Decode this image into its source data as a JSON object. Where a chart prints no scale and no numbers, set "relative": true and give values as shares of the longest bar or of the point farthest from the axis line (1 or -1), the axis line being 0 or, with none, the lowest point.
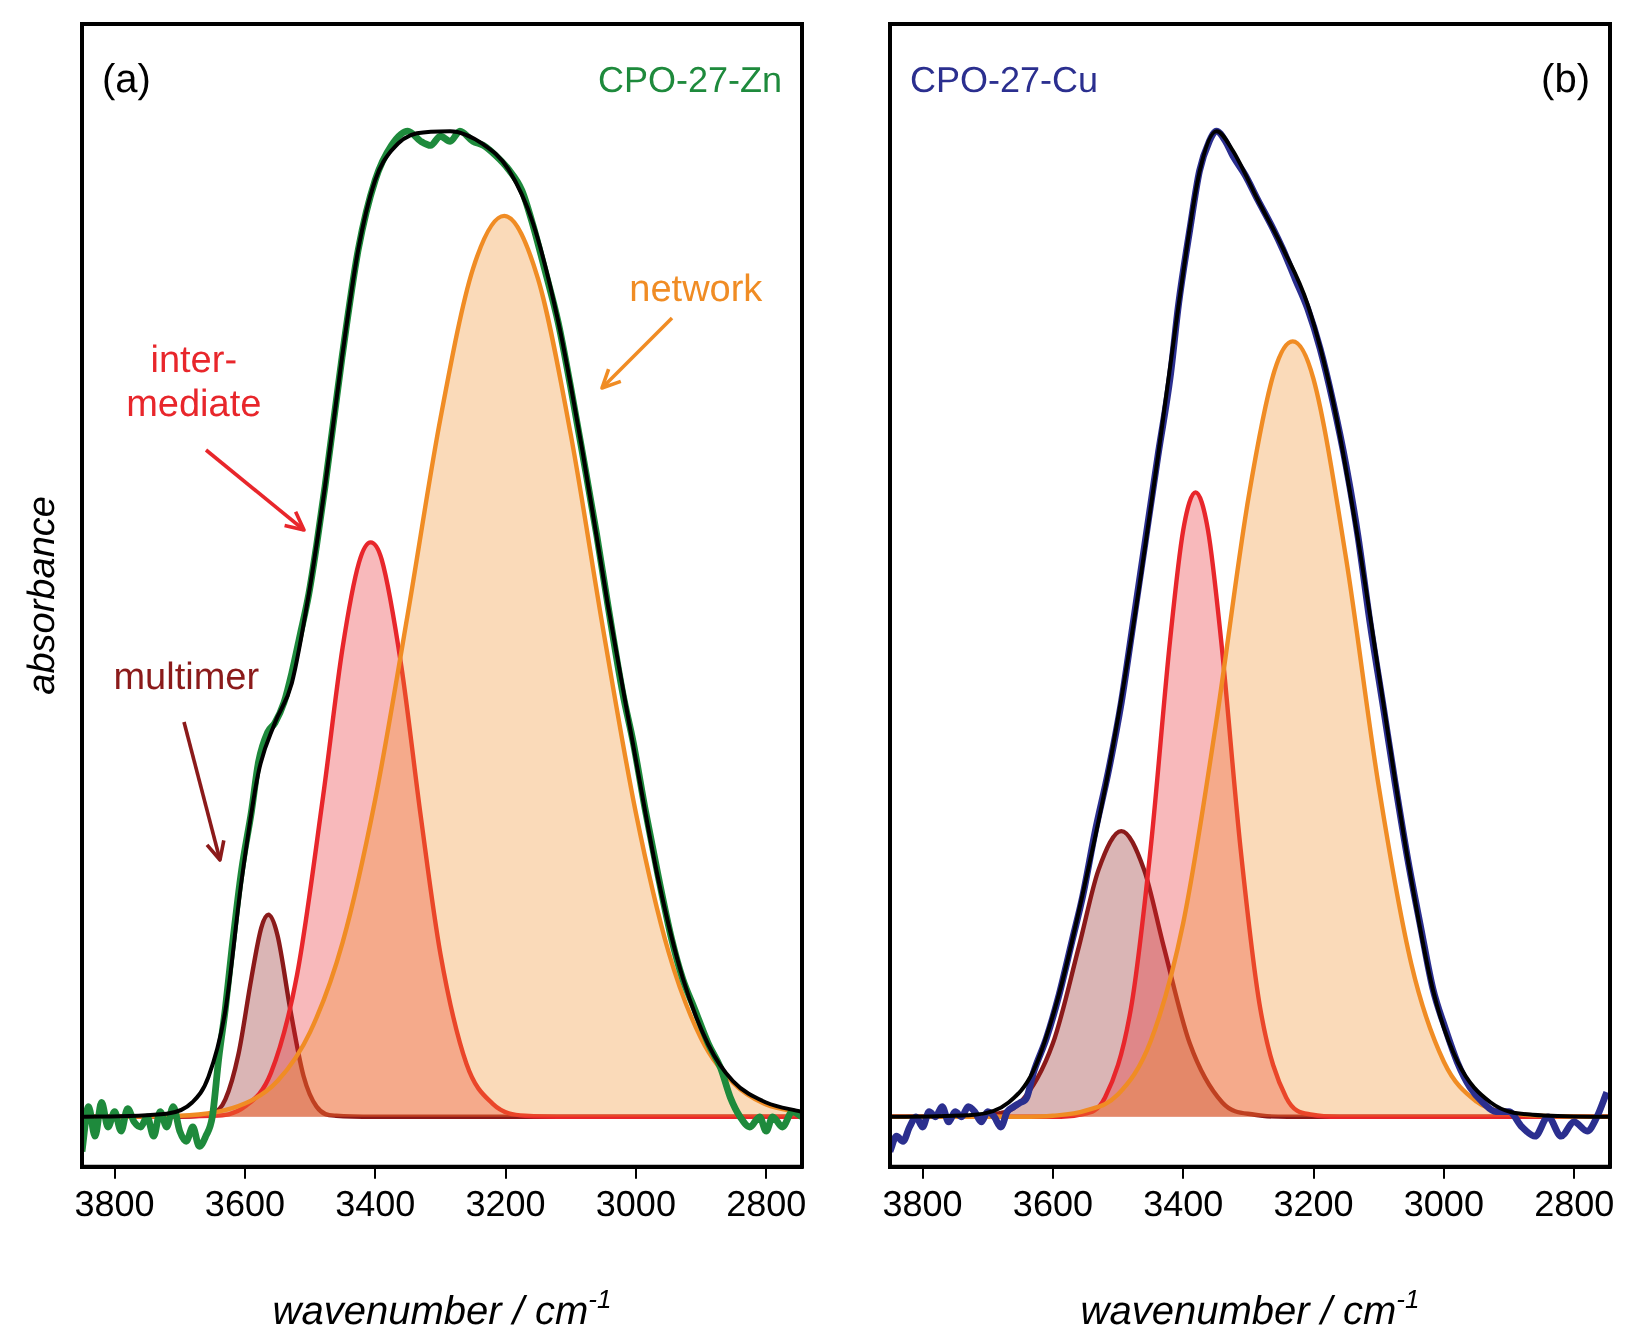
{
  "chart_data": [
    {
      "type": "area",
      "title": "(a)",
      "xlabel": "wavenumber / cm$^{-1}$",
      "ylabel": "absorbance",
      "relative": true,
      "grid": false,
      "legend": false,
      "xlim": [
        3850,
        2745
      ],
      "xticks": [
        3800,
        3600,
        3400,
        3200,
        3000,
        2800
      ],
      "annotations": [
        "multimer",
        "inter-\nmediate",
        "network"
      ],
      "series": [
        {
          "type": "area",
          "color": "#8b1a1a",
          "x": [
            3850,
            3700,
            3650,
            3630,
            3610,
            3590,
            3575,
            3564,
            3550,
            3530,
            3510,
            3490,
            3460,
            3400,
            2745
          ],
          "values": [
            0.034,
            0.034,
            0.037,
            0.051,
            0.095,
            0.17,
            0.219,
            0.232,
            0.212,
            0.138,
            0.074,
            0.044,
            0.035,
            0.034,
            0.034
          ]
        },
        {
          "type": "area",
          "color": "#e8262b",
          "x": [
            3850,
            3650,
            3600,
            3560,
            3520,
            3480,
            3450,
            3425,
            3407,
            3390,
            3360,
            3330,
            3300,
            3260,
            3220,
            3170,
            3100,
            2745
          ],
          "values": [
            0.034,
            0.035,
            0.044,
            0.077,
            0.173,
            0.348,
            0.494,
            0.577,
            0.597,
            0.58,
            0.476,
            0.328,
            0.194,
            0.086,
            0.047,
            0.035,
            0.034,
            0.034
          ]
        },
        {
          "type": "area",
          "color": "#f08c24",
          "x": [
            3850,
            3700,
            3600,
            3550,
            3500,
            3450,
            3400,
            3350,
            3300,
            3250,
            3202,
            3150,
            3100,
            3050,
            3000,
            2950,
            2900,
            2850,
            2800,
            2745
          ],
          "values": [
            0.034,
            0.035,
            0.047,
            0.069,
            0.117,
            0.205,
            0.345,
            0.527,
            0.718,
            0.865,
            0.917,
            0.855,
            0.703,
            0.511,
            0.332,
            0.196,
            0.111,
            0.067,
            0.046,
            0.038
          ]
        },
        {
          "type": "line",
          "name": "CPO-27-Zn",
          "color": "#1e8a3c",
          "x": [
            3850,
            3840,
            3830,
            3820,
            3810,
            3800,
            3790,
            3780,
            3770,
            3760,
            3750,
            3740,
            3730,
            3720,
            3710,
            3700,
            3690,
            3680,
            3670,
            3660,
            3650,
            3640,
            3630,
            3620,
            3605,
            3590,
            3579,
            3565,
            3554,
            3540,
            3528,
            3515,
            3502,
            3490,
            3477,
            3451,
            3426,
            3400,
            3375,
            3350,
            3330,
            3315,
            3300,
            3285,
            3270,
            3250,
            3234,
            3215,
            3196,
            3175,
            3158,
            3140,
            3119,
            3100,
            3081,
            3060,
            3043,
            3020,
            3004,
            2985,
            2966,
            2945,
            2928,
            2910,
            2889,
            2870,
            2855,
            2840,
            2825,
            2810,
            2800,
            2790,
            2775,
            2760,
            2745
          ],
          "values": [
            0,
            0.044,
            0.015,
            0.048,
            0.024,
            0.039,
            0.02,
            0.042,
            0.029,
            0.024,
            0.034,
            0.015,
            0.039,
            0.024,
            0.044,
            0.02,
            0.01,
            0.024,
            0.005,
            0.015,
            0.034,
            0.092,
            0.14,
            0.198,
            0.276,
            0.333,
            0.382,
            0.411,
            0.42,
            0.44,
            0.469,
            0.507,
            0.546,
            0.594,
            0.652,
            0.778,
            0.884,
            0.952,
            0.986,
            1,
            0.99,
            0.986,
            0.995,
            0.99,
            1,
            0.99,
            0.986,
            0.976,
            0.963,
            0.942,
            0.908,
            0.865,
            0.812,
            0.749,
            0.681,
            0.604,
            0.536,
            0.449,
            0.401,
            0.333,
            0.271,
            0.208,
            0.169,
            0.14,
            0.106,
            0.082,
            0.053,
            0.034,
            0.024,
            0.034,
            0.02,
            0.034,
            0.024,
            0.039,
            0.034
          ]
        },
        {
          "type": "line",
          "color": "#000000",
          "x": [
            3850,
            3720,
            3681,
            3656,
            3630,
            3605,
            3579,
            3554,
            3528,
            3502,
            3477,
            3451,
            3426,
            3400,
            3375,
            3336,
            3285,
            3234,
            3196,
            3158,
            3119,
            3081,
            3043,
            3004,
            2966,
            2928,
            2889,
            2851,
            2800,
            2746
          ],
          "values": [
            0.034,
            0.037,
            0.048,
            0.073,
            0.138,
            0.266,
            0.372,
            0.42,
            0.459,
            0.546,
            0.652,
            0.778,
            0.884,
            0.952,
            0.981,
            0.998,
            1,
            0.987,
            0.963,
            0.91,
            0.813,
            0.683,
            0.536,
            0.398,
            0.268,
            0.17,
            0.105,
            0.069,
            0.048,
            0.039
          ]
        }
      ]
    },
    {
      "type": "area",
      "title": "(b)",
      "xlabel": "wavenumber / cm$^{-1}$",
      "relative": true,
      "grid": false,
      "legend": false,
      "xlim": [
        3850,
        2745
      ],
      "xticks": [
        3800,
        3600,
        3400,
        3200,
        3000,
        2800
      ],
      "series": [
        {
          "type": "area",
          "color": "#8b1a1a",
          "x": [
            3850,
            3750,
            3700,
            3650,
            3600,
            3560,
            3530,
            3495,
            3460,
            3430,
            3390,
            3340,
            3290,
            3240,
            2745
          ],
          "values": [
            0.034,
            0.034,
            0.036,
            0.048,
            0.106,
            0.201,
            0.276,
            0.314,
            0.276,
            0.201,
            0.106,
            0.048,
            0.036,
            0.034,
            0.034
          ]
        },
        {
          "type": "area",
          "color": "#e8262b",
          "x": [
            3850,
            3600,
            3560,
            3520,
            3480,
            3450,
            3420,
            3400,
            3381,
            3362,
            3342,
            3312,
            3282,
            3242,
            3202,
            3160,
            2745
          ],
          "values": [
            0.034,
            0.034,
            0.036,
            0.053,
            0.141,
            0.297,
            0.502,
            0.609,
            0.646,
            0.609,
            0.502,
            0.297,
            0.141,
            0.053,
            0.036,
            0.034,
            0.034
          ]
        },
        {
          "type": "area",
          "color": "#f08c24",
          "x": [
            3850,
            3650,
            3600,
            3550,
            3500,
            3450,
            3400,
            3350,
            3300,
            3260,
            3232,
            3200,
            3150,
            3100,
            3050,
            3000,
            2950,
            2900,
            2850,
            2745
          ],
          "values": [
            0.034,
            0.034,
            0.035,
            0.04,
            0.056,
            0.108,
            0.224,
            0.418,
            0.64,
            0.765,
            0.794,
            0.757,
            0.581,
            0.358,
            0.184,
            0.088,
            0.049,
            0.038,
            0.035,
            0.034
          ]
        },
        {
          "type": "line",
          "name": "CPO-27-Cu",
          "color": "#2b2f8f",
          "x": [
            3850,
            3840,
            3830,
            3820,
            3810,
            3800,
            3790,
            3780,
            3770,
            3760,
            3750,
            3740,
            3730,
            3720,
            3710,
            3700,
            3690,
            3680,
            3670,
            3660,
            3650,
            3640,
            3630,
            3610,
            3592,
            3570,
            3554,
            3535,
            3515,
            3495,
            3477,
            3458,
            3439,
            3420,
            3407,
            3390,
            3375,
            3360,
            3349,
            3335,
            3324,
            3305,
            3285,
            3265,
            3247,
            3228,
            3209,
            3190,
            3170,
            3150,
            3132,
            3113,
            3094,
            3075,
            3055,
            3035,
            3017,
            2998,
            2979,
            2960,
            2940,
            2920,
            2900,
            2880,
            2860,
            2840,
            2820,
            2800,
            2780,
            2765,
            2750
          ],
          "values": [
            0,
            0.015,
            0.01,
            0.024,
            0.034,
            0.024,
            0.039,
            0.034,
            0.044,
            0.029,
            0.039,
            0.034,
            0.044,
            0.039,
            0.029,
            0.039,
            0.034,
            0.024,
            0.039,
            0.044,
            0.048,
            0.053,
            0.077,
            0.111,
            0.15,
            0.208,
            0.251,
            0.314,
            0.372,
            0.44,
            0.517,
            0.599,
            0.681,
            0.759,
            0.831,
            0.903,
            0.961,
            0.99,
            1,
            0.99,
            0.976,
            0.957,
            0.932,
            0.908,
            0.884,
            0.855,
            0.826,
            0.787,
            0.734,
            0.672,
            0.604,
            0.517,
            0.44,
            0.362,
            0.285,
            0.218,
            0.16,
            0.121,
            0.087,
            0.063,
            0.048,
            0.039,
            0.039,
            0.024,
            0.015,
            0.034,
            0.015,
            0.029,
            0.02,
            0.034,
            0.058
          ]
        },
        {
          "type": "line",
          "color": "#000000",
          "x": [
            3850,
            3720,
            3668,
            3630,
            3592,
            3554,
            3515,
            3477,
            3439,
            3407,
            3375,
            3349,
            3324,
            3285,
            3247,
            3209,
            3170,
            3132,
            3094,
            3055,
            3017,
            2979,
            2928,
            2864,
            2746
          ],
          "values": [
            0.034,
            0.036,
            0.048,
            0.079,
            0.151,
            0.253,
            0.372,
            0.514,
            0.68,
            0.83,
            0.96,
            1,
            0.981,
            0.932,
            0.885,
            0.83,
            0.735,
            0.601,
            0.444,
            0.285,
            0.159,
            0.088,
            0.048,
            0.036,
            0.034
          ]
        }
      ]
    }
  ]
}
